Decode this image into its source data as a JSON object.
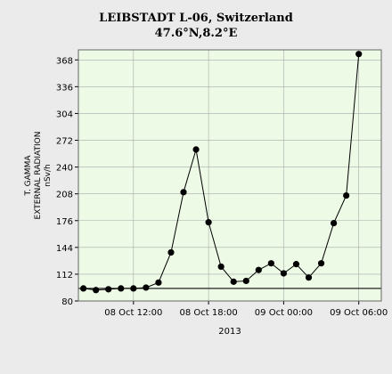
{
  "chart_data": {
    "type": "line",
    "title": "LEIBSTADT L-06, Switzerland",
    "subtitle": "47.6°N,8.2°E",
    "ylabel_lines": [
      "T. GAMMA",
      "EXTERNAL RADIATION",
      "nSv/h"
    ],
    "xlabel": "2013",
    "ylim": [
      80,
      380
    ],
    "yticks": [
      80,
      112,
      144,
      176,
      208,
      240,
      272,
      304,
      336,
      368
    ],
    "xlim_hours": [
      7.6,
      31.8
    ],
    "xticks": [
      {
        "hour": 12,
        "label": "08 Oct 12:00"
      },
      {
        "hour": 18,
        "label": "08 Oct 18:00"
      },
      {
        "hour": 24,
        "label": "09 Oct 00:00"
      },
      {
        "hour": 30,
        "label": "09 Oct 06:00"
      }
    ],
    "grid": true,
    "reference_line": 95,
    "colors": {
      "plot_bg": "#edfbe6",
      "grid": "#a8a8a8",
      "line": "#000000",
      "page_bg": "#ebebeb"
    },
    "series": [
      {
        "x": [
          8,
          9,
          10,
          11,
          12,
          13,
          14,
          15,
          16,
          17,
          18,
          19,
          20,
          21,
          22,
          23,
          24,
          25,
          26,
          27,
          28,
          29,
          30,
          31
        ],
        "y": [
          95,
          93,
          94,
          95,
          95,
          96,
          102,
          138,
          210,
          261,
          174,
          121,
          103,
          104,
          117,
          125,
          113,
          124,
          108,
          125,
          173,
          206,
          375,
          null
        ]
      }
    ]
  }
}
